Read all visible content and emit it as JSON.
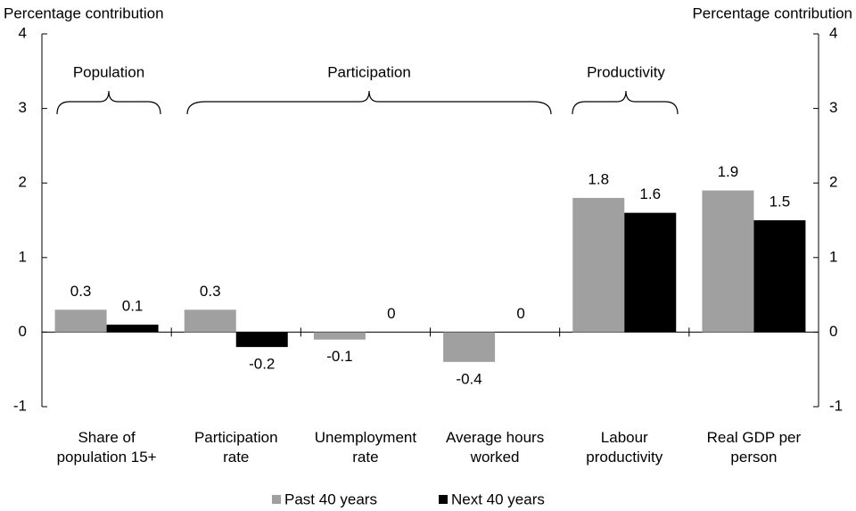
{
  "chart_data": {
    "type": "bar",
    "ylabel": "Percentage contribution",
    "y2label": "Percentage contribution",
    "categories": [
      "Share of\npopulation 15+",
      "Participation\nrate",
      "Unemployment\nrate",
      "Average hours\nworked",
      "Labour\nproductivity",
      "Real GDP per\nperson"
    ],
    "series": [
      {
        "name": "Past 40 years",
        "color": "#a0a0a0",
        "values": [
          0.3,
          0.3,
          -0.1,
          -0.4,
          1.8,
          1.9
        ]
      },
      {
        "name": "Next 40 years",
        "color": "#000000",
        "values": [
          0.1,
          -0.2,
          0,
          0,
          1.6,
          1.5
        ]
      }
    ],
    "ylim": [
      -1,
      4
    ],
    "yticks": [
      -1,
      0,
      1,
      2,
      3,
      4
    ],
    "y2lim": [
      -1,
      4
    ],
    "y2ticks": [
      -1,
      0,
      1,
      2,
      3,
      4
    ],
    "annotations": [
      "Population",
      "Participation",
      "Productivity"
    ],
    "grid": false,
    "legend": "bottom"
  }
}
